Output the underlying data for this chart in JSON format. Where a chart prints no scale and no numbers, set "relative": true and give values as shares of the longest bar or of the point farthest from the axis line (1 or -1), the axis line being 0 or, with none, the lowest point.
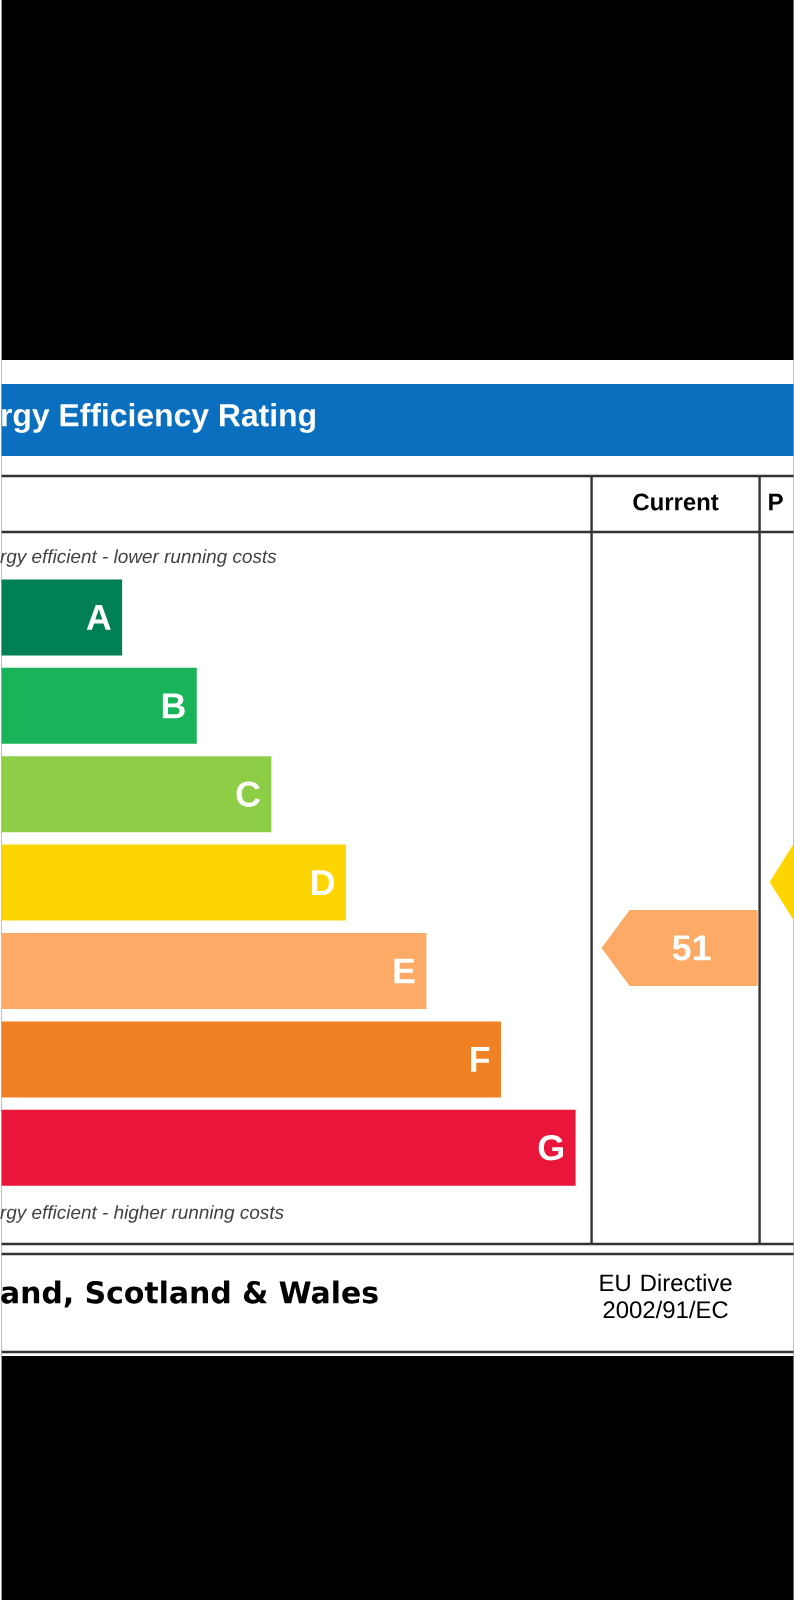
{
  "chart_data": {
    "type": "bar",
    "orientation": "horizontal",
    "relative": true,
    "title": "rgy Efficiency Rating",
    "categories": [
      "A",
      "B",
      "C",
      "D",
      "E",
      "F",
      "G"
    ],
    "values": [
      0.21,
      0.34,
      0.47,
      0.6,
      0.74,
      0.87,
      1
    ],
    "colors": [
      "#008054",
      "#19b459",
      "#8dce46",
      "#ffd500",
      "#fcaa65",
      "#ef8023",
      "#e9153b"
    ],
    "annotations": [
      "Current",
      "P",
      "rgy efficient - lower running costs",
      "rgy efficient - higher running costs",
      "and, Scotland & Wales",
      "EU Directive 2002/91/EC",
      "51"
    ]
  }
}
